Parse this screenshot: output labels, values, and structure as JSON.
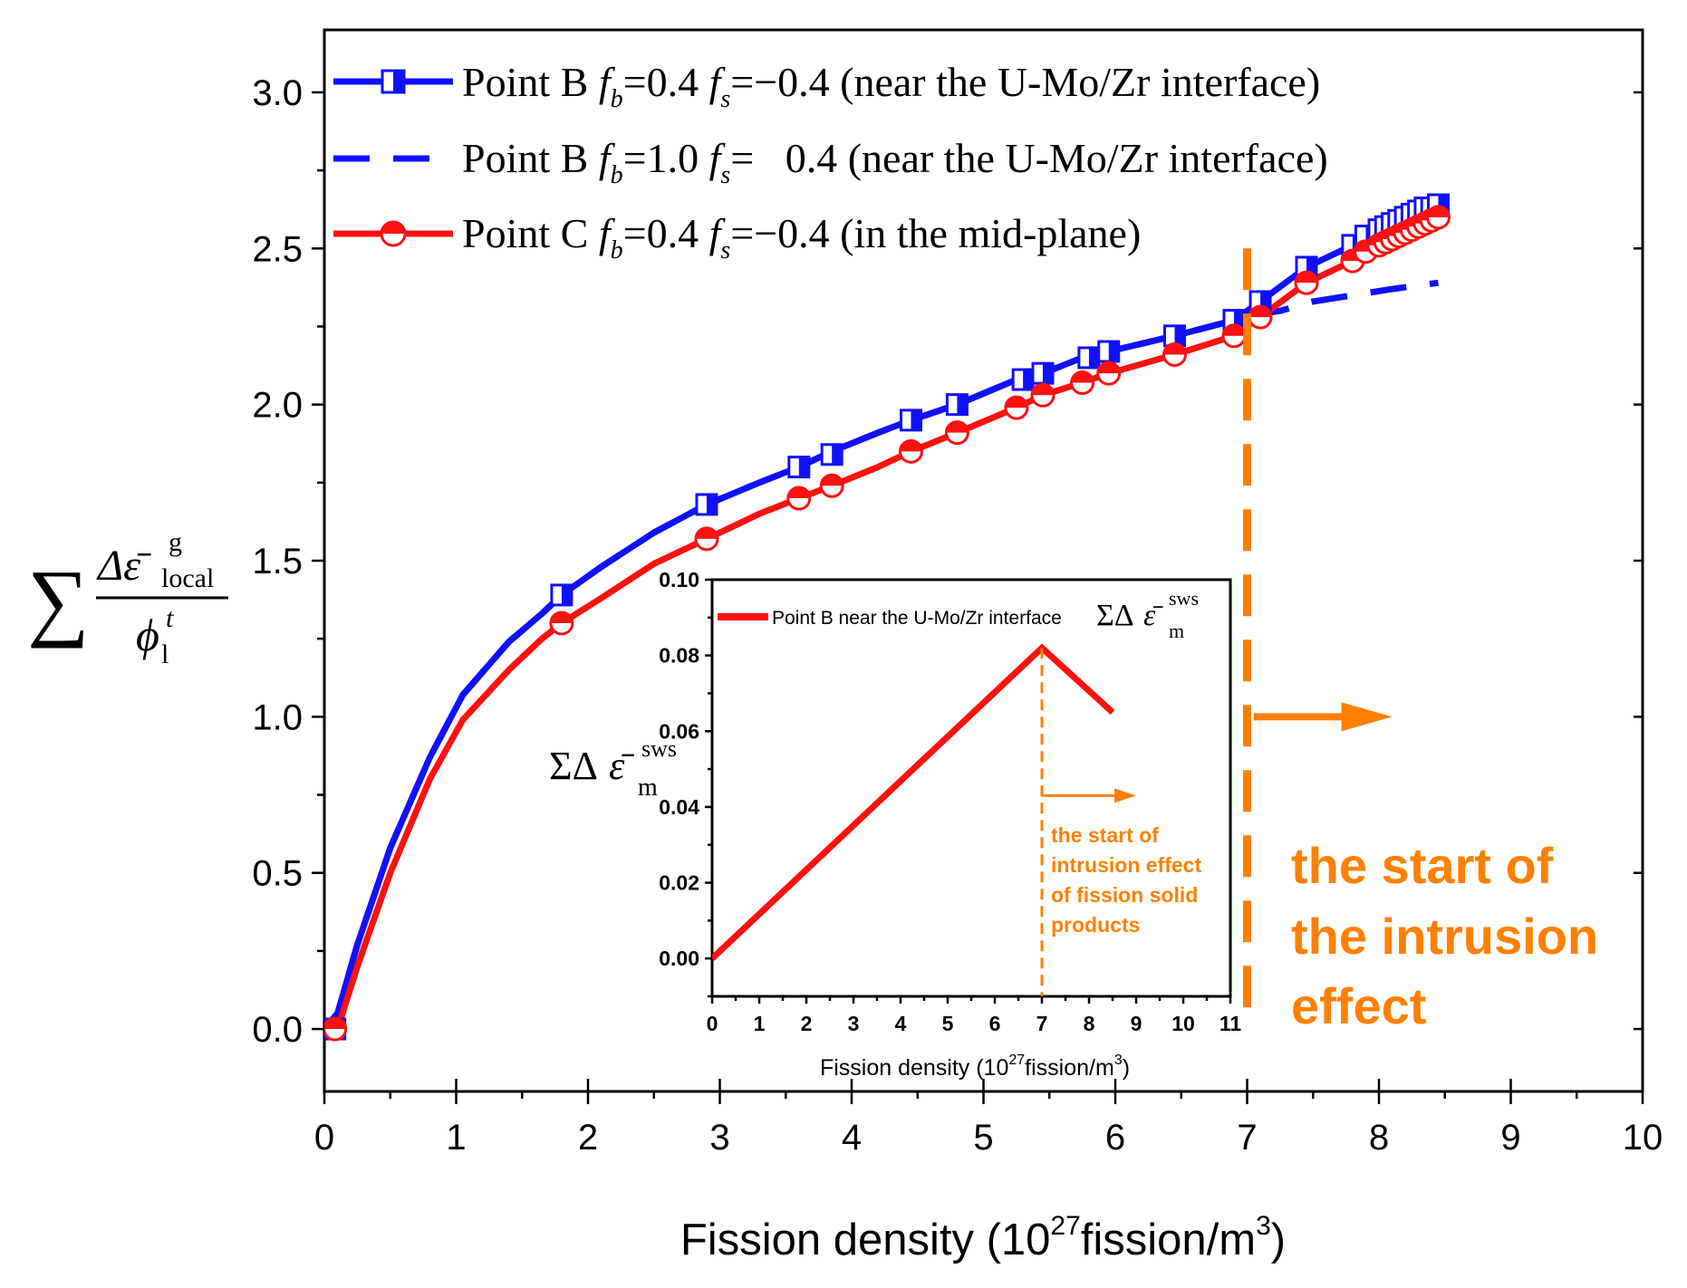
{
  "chart_data": [
    {
      "id": "main",
      "type": "line",
      "title": "",
      "xlabel": "Fission density (10^27fission/m^3)",
      "xlabel_parts": {
        "pre": "Fission density (10",
        "sup1": "27",
        "mid": "fission/m",
        "sup2": "3",
        "post": ")"
      },
      "ylabel": "∑ Δε̄ g local / ϕ t l",
      "ylabel_parts": {
        "sum": "∑",
        "num": "Δε̄",
        "num_sup": "g",
        "num_sub": "local",
        "den": "ϕ",
        "den_sup": "t",
        "den_sub": "l"
      },
      "xlim": [
        0,
        10
      ],
      "ylim": [
        -0.2,
        3.2
      ],
      "x_ticks": [
        "0",
        "1",
        "2",
        "3",
        "4",
        "5",
        "6",
        "7",
        "8",
        "9",
        "10"
      ],
      "y_ticks": [
        "0.0",
        "0.5",
        "1.0",
        "1.5",
        "2.0",
        "2.5",
        "3.0"
      ],
      "legend_position": "top-left",
      "series": [
        {
          "name": "Point B fb=0.4 fs=−0.4 (near the U-Mo/Zr interface)",
          "legend_parts": {
            "pre": "Point B ",
            "b": "0.4",
            "s": "−0.4",
            "post": " (near the U-Mo/Zr interface)"
          },
          "color": "#1010FF",
          "style": "solid",
          "marker": "half-square",
          "x": [
            0,
            0.1,
            0.25,
            0.5,
            0.8,
            1.05,
            1.4,
            1.65,
            1.8,
            2.1,
            2.5,
            2.9,
            3.3,
            3.6,
            3.85,
            4.2,
            4.45,
            4.8,
            5.25,
            5.45,
            5.75,
            5.95,
            6.45,
            6.9,
            7.1,
            7.45,
            7.8,
            7.9,
            8.0,
            8.05,
            8.1,
            8.15,
            8.2,
            8.25,
            8.3,
            8.35,
            8.4,
            8.45
          ],
          "y": [
            0,
            0.05,
            0.27,
            0.58,
            0.87,
            1.07,
            1.24,
            1.33,
            1.39,
            1.48,
            1.59,
            1.68,
            1.75,
            1.8,
            1.85,
            1.91,
            1.95,
            2.0,
            2.08,
            2.1,
            2.15,
            2.17,
            2.22,
            2.27,
            2.33,
            2.44,
            2.51,
            2.54,
            2.56,
            2.57,
            2.58,
            2.59,
            2.6,
            2.61,
            2.62,
            2.63,
            2.64,
            2.64
          ],
          "markers_x": [
            0.08,
            1.8,
            2.9,
            3.6,
            3.85,
            4.45,
            4.8,
            5.3,
            5.45,
            5.8,
            5.95,
            6.45,
            6.9,
            7.1,
            7.45,
            7.8,
            7.9,
            8.0,
            8.05,
            8.1,
            8.15,
            8.2,
            8.25,
            8.3,
            8.35,
            8.4,
            8.45
          ],
          "markers_y": [
            0,
            1.39,
            1.68,
            1.8,
            1.84,
            1.95,
            2.0,
            2.08,
            2.1,
            2.15,
            2.17,
            2.22,
            2.27,
            2.33,
            2.44,
            2.51,
            2.54,
            2.56,
            2.57,
            2.58,
            2.59,
            2.6,
            2.61,
            2.62,
            2.63,
            2.63,
            2.64
          ]
        },
        {
          "name": "Point B fb=1.0 fs= 0.4 (near the U-Mo/Zr interface)",
          "legend_parts": {
            "pre": "Point B ",
            "b": "1.0",
            "s": "  0.4",
            "post": " (near the U-Mo/Zr interface)"
          },
          "color": "#1010FF",
          "style": "dashed",
          "marker": "none",
          "x": [
            0,
            0.1,
            0.25,
            0.5,
            0.8,
            1.05,
            1.4,
            1.65,
            1.8,
            2.1,
            2.5,
            2.9,
            3.3,
            3.6,
            3.85,
            4.2,
            4.45,
            4.8,
            5.25,
            5.45,
            5.75,
            5.95,
            6.45,
            6.9,
            7.1,
            7.25,
            7.5,
            7.8,
            8.1,
            8.45
          ],
          "y": [
            0,
            0.05,
            0.27,
            0.58,
            0.87,
            1.07,
            1.24,
            1.33,
            1.39,
            1.48,
            1.59,
            1.68,
            1.75,
            1.8,
            1.85,
            1.91,
            1.95,
            2.0,
            2.08,
            2.1,
            2.15,
            2.17,
            2.22,
            2.27,
            2.29,
            2.3,
            2.33,
            2.35,
            2.37,
            2.39
          ]
        },
        {
          "name": "Point C fb=0.4 fs=−0.4 (in the mid-plane)",
          "legend_parts": {
            "pre": "Point C ",
            "b": "0.4",
            "s": "−0.4",
            "post": " (in the mid-plane)"
          },
          "color": "#FF1010",
          "style": "solid",
          "marker": "half-circle",
          "x": [
            0,
            0.1,
            0.25,
            0.5,
            0.8,
            1.05,
            1.4,
            1.65,
            1.8,
            2.1,
            2.5,
            2.9,
            3.3,
            3.6,
            3.85,
            4.2,
            4.45,
            4.8,
            5.25,
            5.45,
            5.75,
            5.95,
            6.45,
            6.9,
            7.1,
            7.45,
            7.8,
            7.9,
            8.0,
            8.05,
            8.1,
            8.15,
            8.2,
            8.25,
            8.3,
            8.35,
            8.4,
            8.45
          ],
          "y": [
            0,
            0.0,
            0.2,
            0.5,
            0.8,
            0.99,
            1.15,
            1.25,
            1.3,
            1.38,
            1.49,
            1.57,
            1.65,
            1.7,
            1.74,
            1.8,
            1.85,
            1.91,
            1.99,
            2.03,
            2.07,
            2.1,
            2.16,
            2.22,
            2.28,
            2.39,
            2.46,
            2.49,
            2.51,
            2.52,
            2.53,
            2.54,
            2.55,
            2.56,
            2.57,
            2.58,
            2.59,
            2.6
          ],
          "markers_x": [
            0.08,
            1.8,
            2.9,
            3.6,
            3.85,
            4.45,
            4.8,
            5.25,
            5.45,
            5.75,
            5.95,
            6.45,
            6.9,
            7.1,
            7.45,
            7.8,
            7.9,
            8.0,
            8.05,
            8.1,
            8.15,
            8.2,
            8.25,
            8.3,
            8.35,
            8.4,
            8.45
          ],
          "markers_y": [
            0,
            1.3,
            1.57,
            1.7,
            1.74,
            1.85,
            1.91,
            1.99,
            2.03,
            2.07,
            2.1,
            2.16,
            2.22,
            2.28,
            2.39,
            2.46,
            2.49,
            2.51,
            2.52,
            2.53,
            2.54,
            2.55,
            2.56,
            2.57,
            2.58,
            2.59,
            2.6
          ]
        }
      ],
      "annotation": {
        "lines": [
          "the start of",
          "the intrusion",
          "effect"
        ],
        "color": "#FF8000",
        "vline_x": 7.0,
        "arrow_from_x": 7.05,
        "arrow_to_x": 8.1,
        "arrow_y": 1.0
      }
    },
    {
      "id": "inset",
      "type": "line",
      "title": "",
      "xlabel": "Fission density (10^27fission/m^3)",
      "xlabel_parts": {
        "pre": "Fission density (10",
        "sup1": "27",
        "mid": "fission/m",
        "sup2": "3",
        "post": ")"
      },
      "ylabel": "ΣΔε̄ sws m",
      "ylabel_parts": {
        "sum": "ΣΔ",
        "eps": "ε̄",
        "sup": "sws",
        "sub": "m"
      },
      "xlim": [
        0,
        11
      ],
      "ylim": [
        -0.01,
        0.1
      ],
      "x_ticks": [
        "0",
        "1",
        "2",
        "3",
        "4",
        "5",
        "6",
        "7",
        "8",
        "9",
        "10",
        "11"
      ],
      "y_ticks": [
        "0.00",
        "0.02",
        "0.04",
        "0.06",
        "0.08",
        "0.10"
      ],
      "legend_position": "top",
      "series": [
        {
          "name": "Point B near the U-Mo/Zr interface",
          "color": "#FF1010",
          "style": "solid",
          "x": [
            0,
            7.0,
            8.5
          ],
          "y": [
            0.0,
            0.082,
            0.065
          ]
        }
      ],
      "legend_symbol": {
        "sum": "ΣΔ",
        "eps": "ε̄",
        "sup": "sws",
        "sub": "m"
      },
      "annotation": {
        "lines": [
          "the start of",
          "intrusion effect",
          "of fission solid",
          "products"
        ],
        "color": "#FF8000",
        "vline_x": 7.0,
        "arrow_from_x": 7.0,
        "arrow_to_x": 9.0,
        "arrow_y": 0.043
      }
    }
  ]
}
